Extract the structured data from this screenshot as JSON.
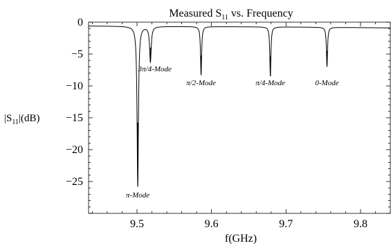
{
  "chart_data": {
    "type": "line",
    "title_main": "Measured S",
    "title_sub": "11",
    "title_rest": "  vs. Frequency",
    "xlabel": "f(GHz)",
    "ylabel_main": "|S",
    "ylabel_sub": "11",
    "ylabel_rest": "|(dB)",
    "xlim": [
      9.435,
      9.84
    ],
    "ylim": [
      -30,
      0
    ],
    "x_ticks": [
      9.5,
      9.6,
      9.7,
      9.8
    ],
    "x_tick_labels": [
      "9.5",
      "9.6",
      "9.7",
      "9.8"
    ],
    "y_ticks": [
      0,
      -5,
      -10,
      -15,
      -20,
      -25
    ],
    "y_tick_labels": [
      "0",
      "−5",
      "−10",
      "−15",
      "−20",
      "−25"
    ],
    "grid": false,
    "series": [
      {
        "baseline": {
          "x": [
            9.435,
            9.5,
            9.6,
            9.7,
            9.8,
            9.84
          ],
          "y": [
            -0.6,
            -0.65,
            -0.7,
            -0.75,
            -0.85,
            -0.9
          ]
        },
        "resonances": [
          {
            "f0": 9.501,
            "depth_db": -25.8,
            "width_ghz": 0.0011
          },
          {
            "f0": 9.518,
            "depth_db": -6.2,
            "width_ghz": 0.0013
          },
          {
            "f0": 9.586,
            "depth_db": -8.3,
            "width_ghz": 0.0009
          },
          {
            "f0": 9.679,
            "depth_db": -8.5,
            "width_ghz": 0.0009
          },
          {
            "f0": 9.755,
            "depth_db": -7.0,
            "width_ghz": 0.0009
          }
        ]
      }
    ],
    "annotations": [
      {
        "text": "π-Mode",
        "x": 9.501,
        "y": -27.5
      },
      {
        "text": "3π/4-Mode",
        "x": 9.524,
        "y": -7.7
      },
      {
        "text": "π/2-Mode",
        "x": 9.586,
        "y": -9.9
      },
      {
        "text": "π/4-Mode",
        "x": 9.679,
        "y": -9.9
      },
      {
        "text": "0-Mode",
        "x": 9.755,
        "y": -9.9
      }
    ]
  }
}
